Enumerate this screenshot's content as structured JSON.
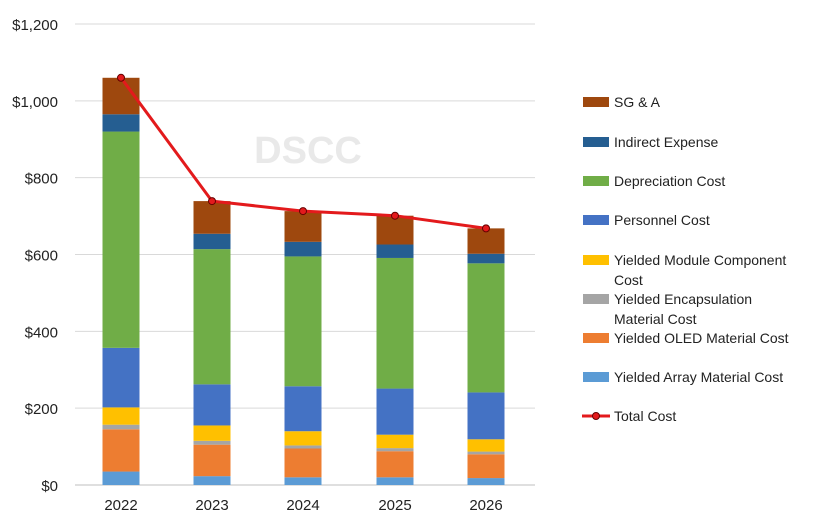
{
  "chart_data": {
    "type": "bar",
    "stacked": true,
    "watermark": "DSCC",
    "categories": [
      "2022",
      "2023",
      "2024",
      "2025",
      "2026"
    ],
    "ylim": [
      0,
      1200
    ],
    "yticks": [
      "$0",
      "$200",
      "$400",
      "$600",
      "$800",
      "$1,000",
      "$1,200"
    ],
    "ytick_values": [
      0,
      200,
      400,
      600,
      800,
      1000,
      1200
    ],
    "grid": "horizontal",
    "legend_position": "right",
    "series": [
      {
        "name": "Yielded Array Material Cost",
        "color": "#5b9bd5",
        "values": [
          35,
          23,
          20,
          20,
          18
        ]
      },
      {
        "name": "Yielded OLED Material Cost",
        "color": "#ed7d31",
        "values": [
          110,
          82,
          75,
          68,
          62
        ]
      },
      {
        "name": "Yielded Encapsulation Material Cost",
        "color": "#a5a5a5",
        "values": [
          12,
          10,
          8,
          8,
          7
        ]
      },
      {
        "name": "Yielded Module Component Cost",
        "color": "#ffc000",
        "values": [
          45,
          40,
          37,
          35,
          32
        ]
      },
      {
        "name": "Personnel Cost",
        "color": "#4472c4",
        "values": [
          155,
          107,
          117,
          120,
          122
        ]
      },
      {
        "name": "Depreciation Cost",
        "color": "#70ad47",
        "values": [
          563,
          352,
          338,
          340,
          336
        ]
      },
      {
        "name": "Indirect Expense",
        "color": "#255e91",
        "values": [
          45,
          40,
          38,
          35,
          25
        ]
      },
      {
        "name": "SG & A",
        "color": "#9e480e",
        "values": [
          95,
          85,
          80,
          75,
          66
        ]
      }
    ],
    "line_series": {
      "name": "Total Cost",
      "color": "#e31a1c",
      "values": [
        1060,
        739,
        713,
        701,
        668
      ]
    },
    "legend_order": [
      "SG & A",
      "Indirect Expense",
      "Depreciation Cost",
      "Personnel Cost",
      "Yielded Module Component Cost",
      "Yielded Encapsulation Material Cost",
      "Yielded OLED Material Cost",
      "Yielded Array Material Cost",
      "Total Cost"
    ]
  }
}
